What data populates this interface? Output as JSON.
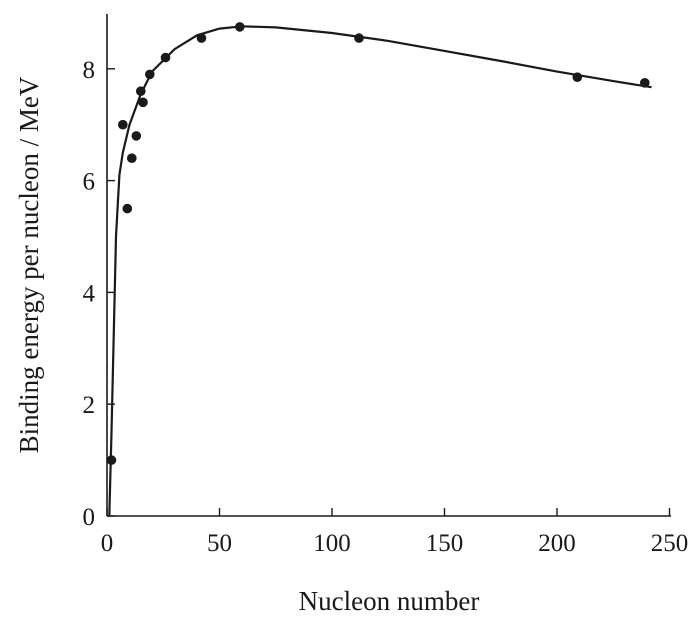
{
  "chart_data": {
    "type": "scatter",
    "xlabel": "Nucleon number",
    "ylabel": "Binding energy per nucleon / MeV",
    "xlim": [
      0,
      250
    ],
    "ylim": [
      0,
      9.2
    ],
    "xticks": [
      0,
      50,
      100,
      150,
      200,
      250
    ],
    "yticks": [
      0,
      2,
      4,
      6,
      8
    ],
    "grid": false,
    "legend": "none",
    "series": [
      {
        "kind": "points",
        "points": [
          {
            "x": 2,
            "y": 1.0
          },
          {
            "x": 7,
            "y": 7.0
          },
          {
            "x": 9,
            "y": 5.5
          },
          {
            "x": 11,
            "y": 6.4
          },
          {
            "x": 13,
            "y": 6.8
          },
          {
            "x": 15,
            "y": 7.6
          },
          {
            "x": 16,
            "y": 7.4
          },
          {
            "x": 19,
            "y": 7.9
          },
          {
            "x": 26,
            "y": 8.2
          },
          {
            "x": 42,
            "y": 8.55
          },
          {
            "x": 59,
            "y": 8.75
          },
          {
            "x": 112,
            "y": 8.55
          },
          {
            "x": 209,
            "y": 7.85
          },
          {
            "x": 239,
            "y": 7.75
          }
        ]
      },
      {
        "kind": "curve",
        "points": [
          {
            "x": 1,
            "y": 0
          },
          {
            "x": 2,
            "y": 1.5
          },
          {
            "x": 4,
            "y": 5.0
          },
          {
            "x": 5.5,
            "y": 6.1
          },
          {
            "x": 7,
            "y": 6.5
          },
          {
            "x": 10,
            "y": 7.0
          },
          {
            "x": 15,
            "y": 7.55
          },
          {
            "x": 20,
            "y": 7.95
          },
          {
            "x": 30,
            "y": 8.35
          },
          {
            "x": 40,
            "y": 8.6
          },
          {
            "x": 50,
            "y": 8.72
          },
          {
            "x": 60,
            "y": 8.76
          },
          {
            "x": 75,
            "y": 8.74
          },
          {
            "x": 100,
            "y": 8.64
          },
          {
            "x": 125,
            "y": 8.5
          },
          {
            "x": 150,
            "y": 8.32
          },
          {
            "x": 175,
            "y": 8.14
          },
          {
            "x": 200,
            "y": 7.95
          },
          {
            "x": 225,
            "y": 7.78
          },
          {
            "x": 242,
            "y": 7.67
          }
        ]
      }
    ]
  }
}
